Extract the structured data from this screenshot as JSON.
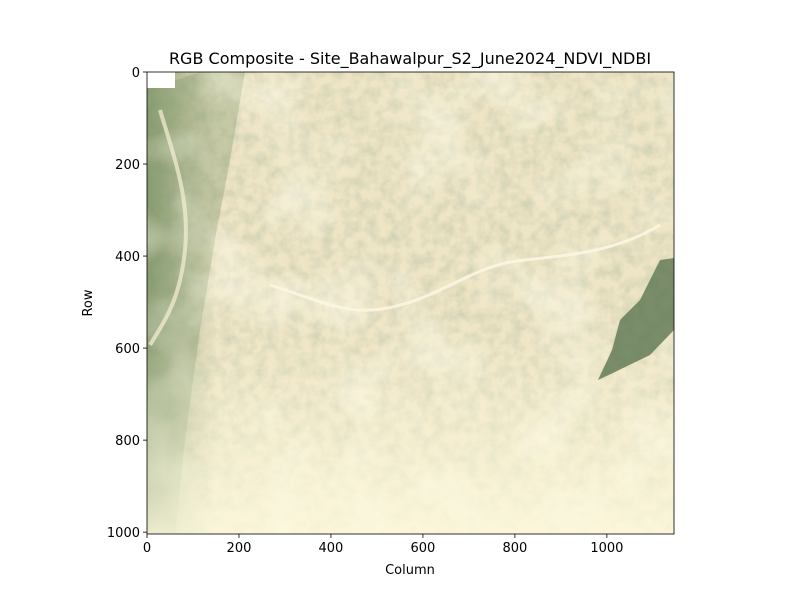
{
  "chart_data": {
    "type": "image",
    "title": "RGB Composite - Site_Bahawalpur_S2_June2024_NDVI_NDBI",
    "x_label": "Column",
    "y_label": "Row",
    "xlim": [
      0,
      1146
    ],
    "ylim": [
      1004,
      0
    ],
    "xticks": [
      0,
      200,
      400,
      600,
      800,
      1000
    ],
    "yticks": [
      0,
      200,
      400,
      600,
      800,
      1000
    ]
  }
}
